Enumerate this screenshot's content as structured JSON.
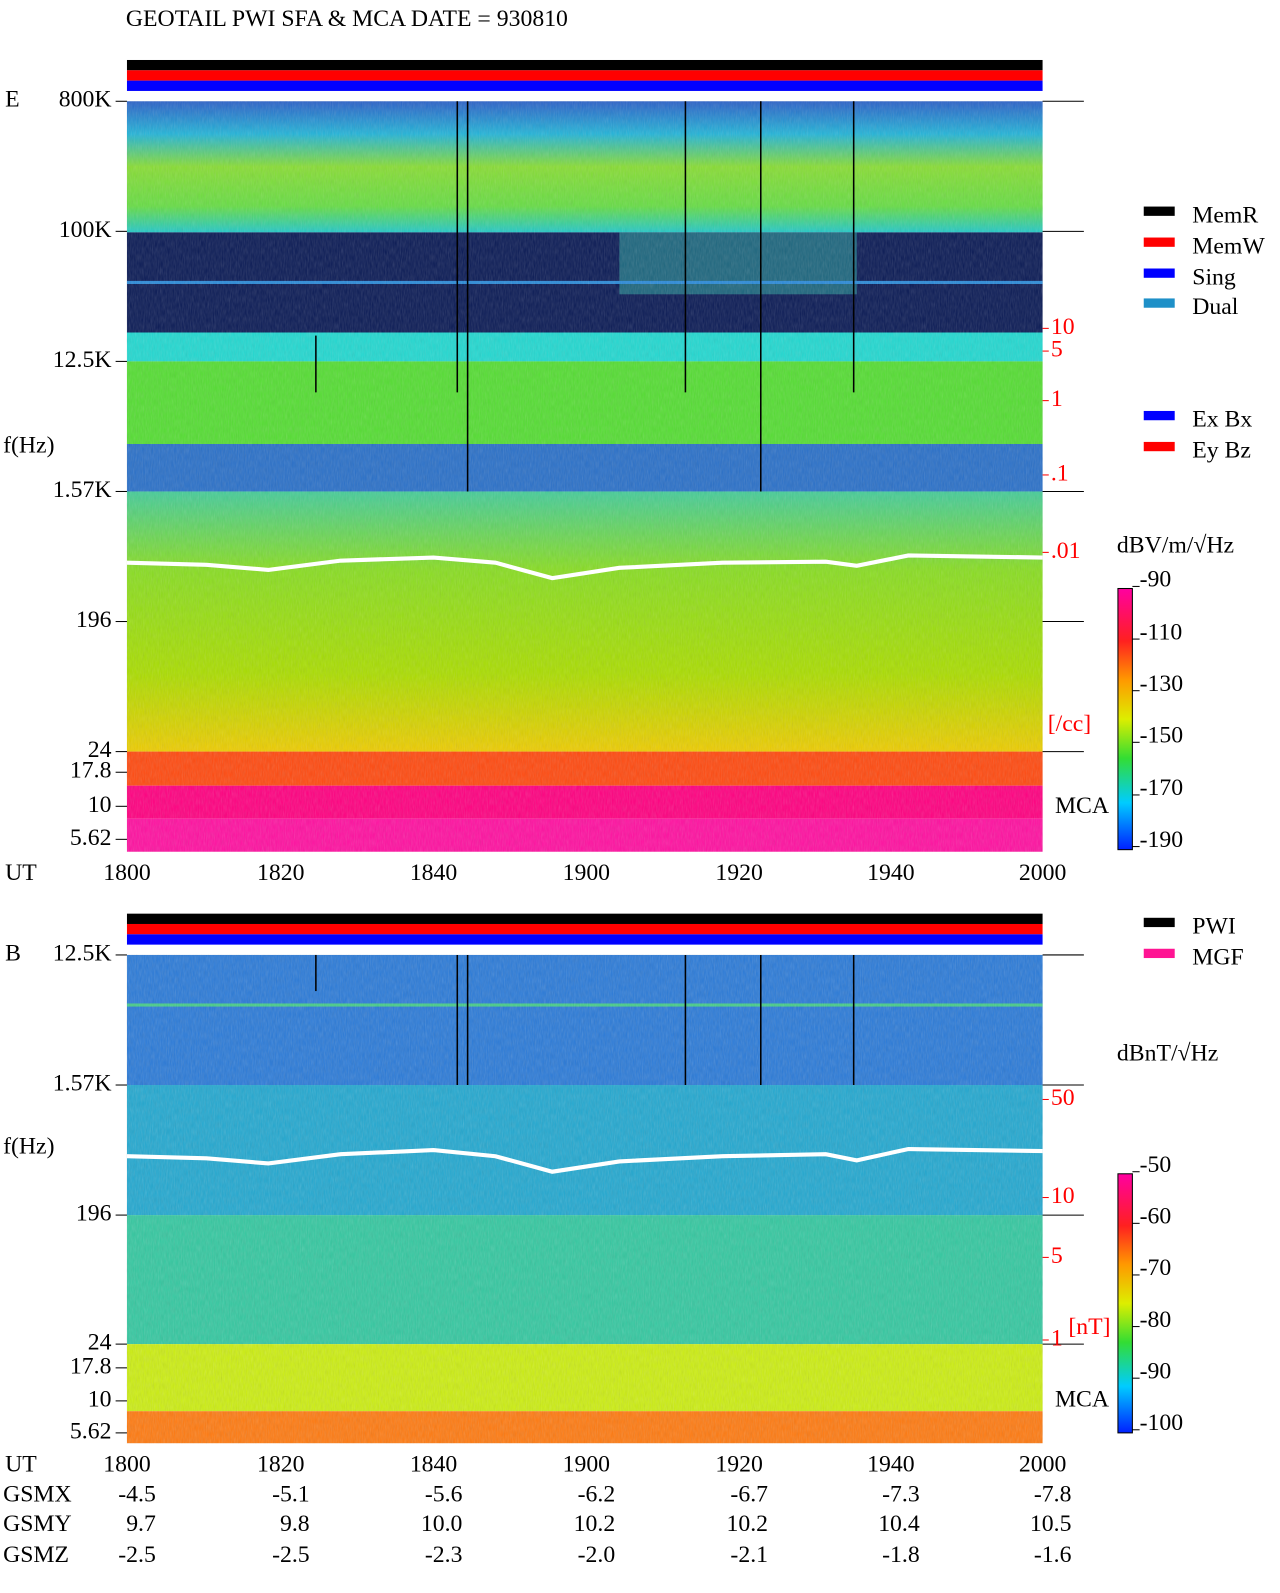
{
  "header": {
    "title": "GEOTAIL   PWI SFA & MCA   DATE = 930810"
  },
  "panels": [
    {
      "label": "E",
      "axis_label": "f(Hz)",
      "freq_ticks": [
        "800K",
        "100K",
        "12.5K",
        "1.57K",
        "196",
        "24",
        "17.8",
        "10",
        "5.62"
      ],
      "density_ticks": [
        "10",
        "5",
        "1",
        ".1",
        ".01"
      ],
      "density_unit": "[/cc]",
      "mca_label": "MCA",
      "colorbar": {
        "unit": "dBV/m/√Hz",
        "ticks": [
          "-90",
          "-110",
          "-130",
          "-150",
          "-170",
          "-190"
        ]
      },
      "legend": [
        {
          "name": "MemR",
          "color": "#000000"
        },
        {
          "name": "MemW",
          "color": "#ff0000"
        },
        {
          "name": "Sing",
          "color": "#0000ff"
        },
        {
          "name": "Dual",
          "color": "#1e90c8"
        }
      ],
      "legend2": [
        {
          "name": "Ex Bx",
          "color": "#0000ff"
        },
        {
          "name": "Ey Bz",
          "color": "#ff0000"
        }
      ]
    },
    {
      "label": "B",
      "axis_label": "f(Hz)",
      "freq_ticks": [
        "12.5K",
        "1.57K",
        "196",
        "24",
        "17.8",
        "10",
        "5.62"
      ],
      "density_ticks": [
        "50",
        "10",
        "5",
        "1"
      ],
      "density_unit": "[nT]",
      "mca_label": "MCA",
      "colorbar": {
        "unit": "dBnT/√Hz",
        "ticks": [
          "-50",
          "-60",
          "-70",
          "-80",
          "-90",
          "-100"
        ]
      },
      "legend": [
        {
          "name": "PWI",
          "color": "#000000"
        },
        {
          "name": "MGF",
          "color": "#ff1493"
        }
      ],
      "legend2": []
    }
  ],
  "time_axis": {
    "label": "UT",
    "ticks": [
      "1800",
      "1820",
      "1840",
      "1900",
      "1920",
      "1940",
      "2000"
    ]
  },
  "orbit": [
    {
      "label": "GSMX",
      "values": [
        "-4.5",
        "-5.1",
        "-5.6",
        "-6.2",
        "-6.7",
        "-7.3",
        "-7.8"
      ]
    },
    {
      "label": "GSMY",
      "values": [
        "9.7",
        "9.8",
        "10.0",
        "10.2",
        "10.2",
        "10.4",
        "10.5"
      ]
    },
    {
      "label": "GSMZ",
      "values": [
        "-2.5",
        "-2.5",
        "-2.3",
        "-2.0",
        "-2.1",
        "-1.8",
        "-1.6"
      ]
    }
  ]
}
